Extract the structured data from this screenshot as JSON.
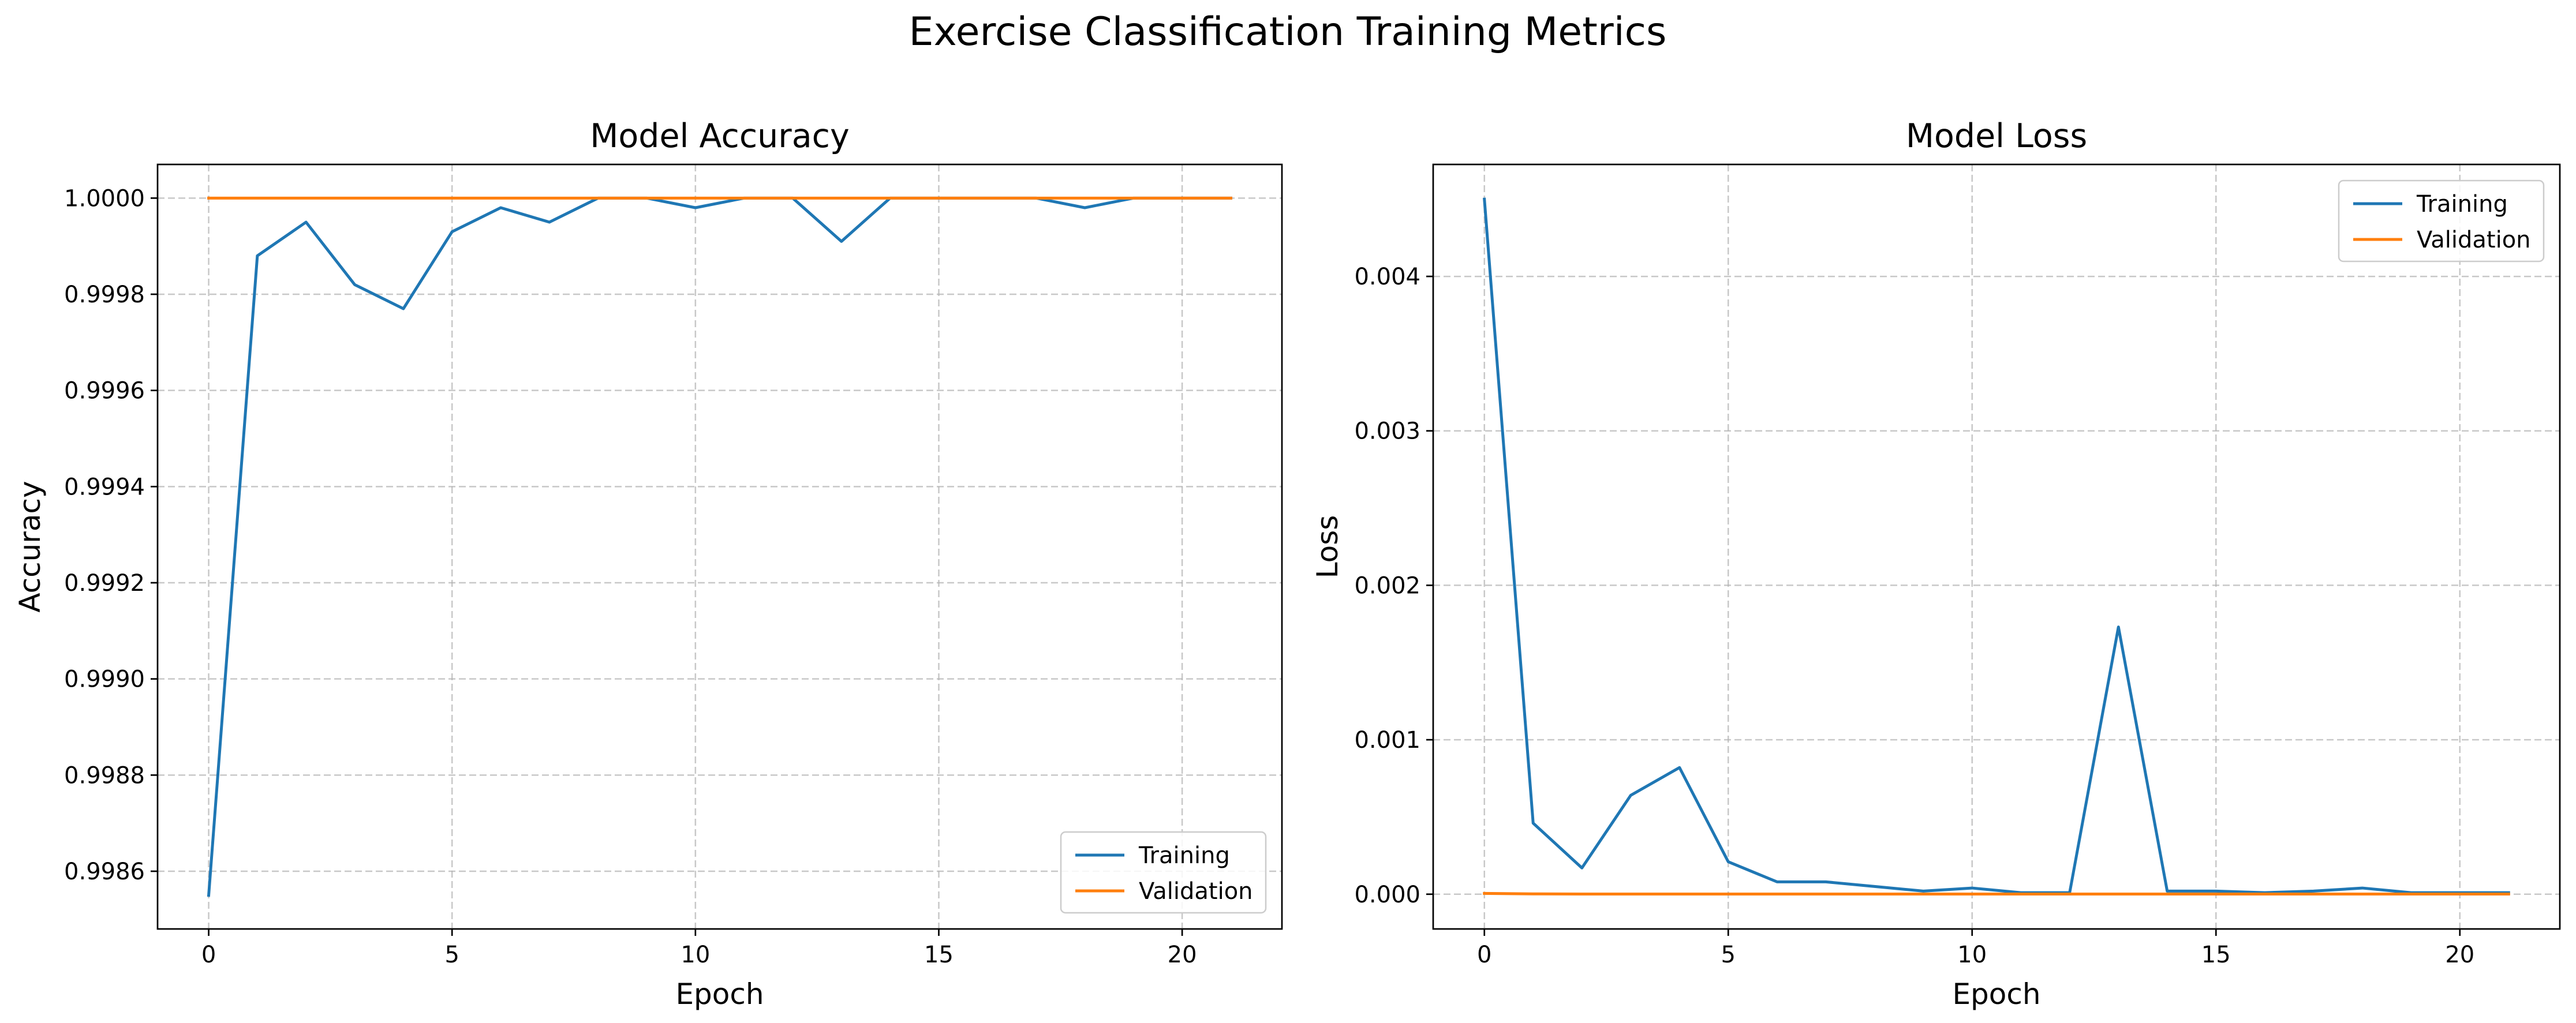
{
  "figure": {
    "title": "Exercise Classification Training Metrics"
  },
  "chart_data": [
    {
      "type": "line",
      "title": "Model Accuracy",
      "xlabel": "Epoch",
      "ylabel": "Accuracy",
      "x": [
        0,
        1,
        2,
        3,
        4,
        5,
        6,
        7,
        8,
        9,
        10,
        11,
        12,
        13,
        14,
        15,
        16,
        17,
        18,
        19,
        20,
        21
      ],
      "xlim": [
        -1.05,
        22.05
      ],
      "ylim": [
        0.99848,
        1.00007
      ],
      "xticks": [
        0,
        5,
        10,
        15,
        20
      ],
      "xtick_labels": [
        "0",
        "5",
        "10",
        "15",
        "20"
      ],
      "yticks": [
        0.9986,
        0.9988,
        0.999,
        0.9992,
        0.9994,
        0.9996,
        0.9998,
        1.0
      ],
      "ytick_labels": [
        "0.9986",
        "0.9988",
        "0.9990",
        "0.9992",
        "0.9994",
        "0.9996",
        "0.9998",
        "1.0000"
      ],
      "grid": true,
      "legend_position": "lower-right",
      "series": [
        {
          "name": "Training",
          "color": "#1f77b4",
          "values": [
            0.99855,
            0.99988,
            0.99995,
            0.99982,
            0.99977,
            0.99993,
            0.99998,
            0.99995,
            1.0,
            1.0,
            0.99998,
            1.0,
            1.0,
            0.99991,
            1.0,
            1.0,
            1.0,
            1.0,
            0.99998,
            1.0,
            1.0,
            1.0
          ]
        },
        {
          "name": "Validation",
          "color": "#ff7f0e",
          "values": [
            1.0,
            1.0,
            1.0,
            1.0,
            1.0,
            1.0,
            1.0,
            1.0,
            1.0,
            1.0,
            1.0,
            1.0,
            1.0,
            1.0,
            1.0,
            1.0,
            1.0,
            1.0,
            1.0,
            1.0,
            1.0,
            1.0
          ]
        }
      ]
    },
    {
      "type": "line",
      "title": "Model Loss",
      "xlabel": "Epoch",
      "ylabel": "Loss",
      "x": [
        0,
        1,
        2,
        3,
        4,
        5,
        6,
        7,
        8,
        9,
        10,
        11,
        12,
        13,
        14,
        15,
        16,
        17,
        18,
        19,
        20,
        21
      ],
      "xlim": [
        -1.05,
        22.05
      ],
      "ylim": [
        -0.000225,
        0.004725
      ],
      "xticks": [
        0,
        5,
        10,
        15,
        20
      ],
      "xtick_labels": [
        "0",
        "5",
        "10",
        "15",
        "20"
      ],
      "yticks": [
        0.0,
        0.001,
        0.002,
        0.003,
        0.004
      ],
      "ytick_labels": [
        "0.000",
        "0.001",
        "0.002",
        "0.003",
        "0.004"
      ],
      "grid": true,
      "legend_position": "upper-right",
      "series": [
        {
          "name": "Training",
          "color": "#1f77b4",
          "values": [
            0.0045,
            0.00046,
            0.00017,
            0.00064,
            0.00082,
            0.00021,
            8e-05,
            8e-05,
            5e-05,
            2e-05,
            4e-05,
            1e-05,
            1e-05,
            0.00173,
            2e-05,
            2e-05,
            1e-05,
            2e-05,
            4e-05,
            1e-05,
            1e-05,
            1e-05
          ]
        },
        {
          "name": "Validation",
          "color": "#ff7f0e",
          "values": [
            5e-06,
            2e-06,
            1e-06,
            1e-06,
            1e-06,
            1e-06,
            1e-06,
            1e-06,
            1e-06,
            1e-06,
            1e-06,
            1e-06,
            1e-06,
            1e-06,
            1e-06,
            1e-06,
            1e-06,
            1e-06,
            1e-06,
            1e-06,
            1e-06,
            1e-06
          ]
        }
      ]
    }
  ]
}
